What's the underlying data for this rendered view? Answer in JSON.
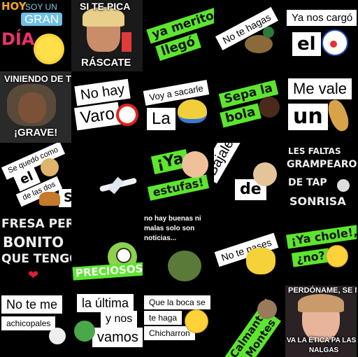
{
  "stickers": {
    "s1": {
      "l1": "HOY",
      "l2": "SOY UN",
      "l3": "GRAN",
      "l4": "DÍA"
    },
    "s2": {
      "top": "SI TE PICA",
      "bottom": "RÁSCATE"
    },
    "s3": {
      "l1": "ya merito",
      "l2": "llegó"
    },
    "s4": {
      "l1": "No te hagas"
    },
    "s5": {
      "l1": "Ya nos cargó",
      "l2": "el"
    },
    "s6": {
      "top": "VINIENDO DE TÍ",
      "bottom": "¡GRAVE!"
    },
    "s7": {
      "l1": "No hay",
      "l2": "Varo"
    },
    "s8": {
      "l1": "Voy a sacarle",
      "l2": "La"
    },
    "s9": {
      "l1": "Sepa la",
      "l2": "bola"
    },
    "s10": {
      "l1": "Me vale",
      "l2": "un"
    },
    "s11": {
      "l1": "Se quedó como",
      "l2": "el",
      "l3": "de las dos",
      "l4": "S"
    },
    "s13": {
      "l1": "¡Ya",
      "l2": "estufas!"
    },
    "s14": {
      "l1": "Bájale",
      "l2": "de"
    },
    "s15": {
      "l1": "LES FALTAS",
      "l2": "GRAMPEARO",
      "l3": "DE TAP",
      "l4": "SONRISA"
    },
    "s16": {
      "l1": "FRESA PERO",
      "l2": "BONITO",
      "l3": "QUE TENGO"
    },
    "s17": {
      "l1": "PRECIOSOS"
    },
    "s18": {
      "l1": "no hay buenas ni",
      "l2": "malas solo son",
      "l3": "noticias..."
    },
    "s19": {
      "l1": "No te pases"
    },
    "s20": {
      "l1": "¡Ya chole!,",
      "l2": "¿no?"
    },
    "s21": {
      "l1": "No te me",
      "l2": "achicopales"
    },
    "s22": {
      "l1": "la última",
      "l2": "y nos",
      "l3": "vamos"
    },
    "s23": {
      "l1": "Que la boca se",
      "l2": "te haga",
      "l3": "Chicharron"
    },
    "s24": {
      "l1": "Calmantes",
      "l2": "Montes"
    },
    "s25": {
      "top": "PERDÓNAME, SE ME",
      "bottom": "VA LA ÉTICA PA LAS",
      "bottom2": "NALGAS"
    }
  },
  "colors": {
    "sticker_green": "#5ce62e",
    "background": "#000000",
    "sticker_white": "#ffffff"
  }
}
